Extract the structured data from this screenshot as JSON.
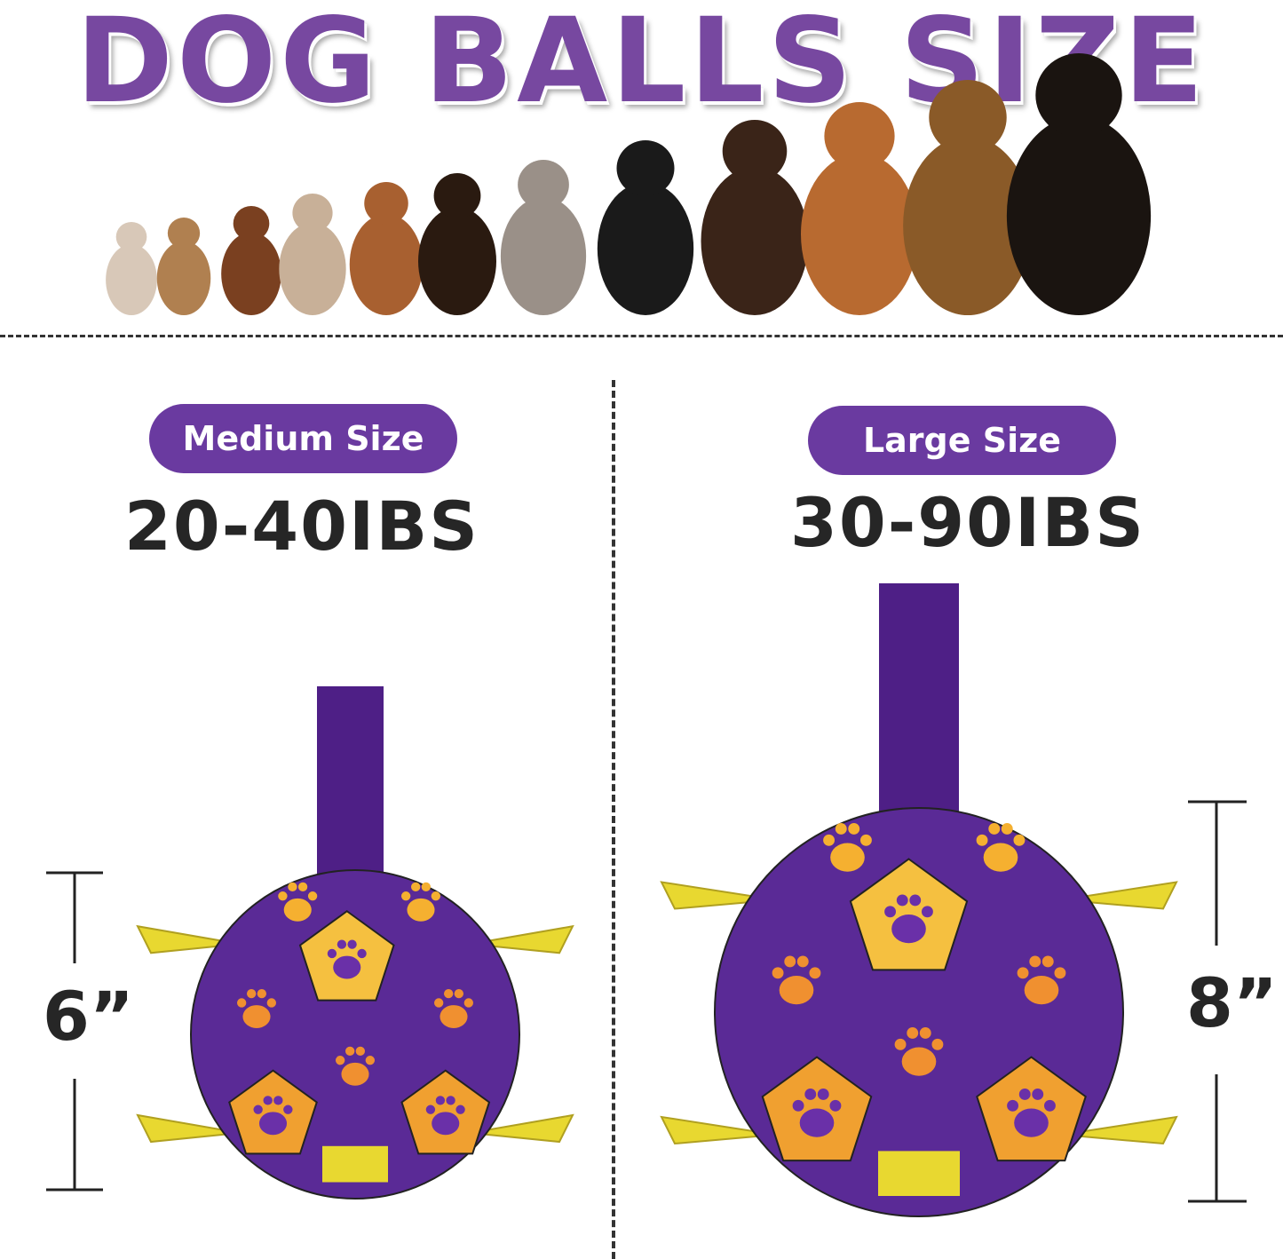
{
  "title": "DOG BALLS SIZE",
  "medium": {
    "label": "Medium Size",
    "weight": "20-40IBS",
    "diameter": "6”"
  },
  "large": {
    "label": "Large Size",
    "weight": "30-90IBS",
    "diameter": "8”"
  },
  "colors": {
    "brand_purple": "#7748a0",
    "pill": "#6a3aa0",
    "ball_purple": "#5a2a96",
    "panel_orange": "#f0a030",
    "strap_yellow": "#e8d830",
    "text": "#262626"
  }
}
